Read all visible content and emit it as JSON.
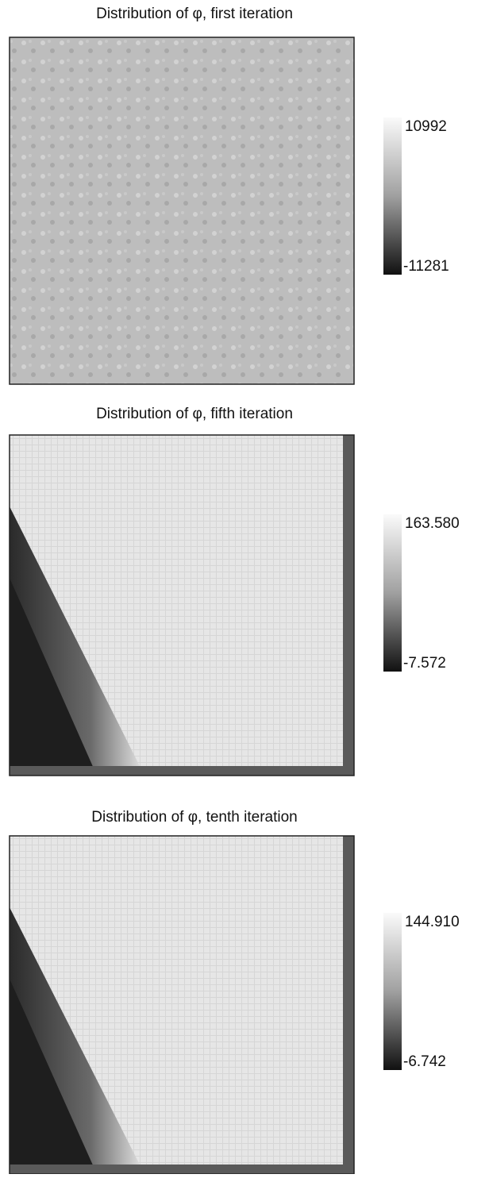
{
  "panels": [
    {
      "title": "Distribution of φ, first iteration",
      "colorbar": {
        "max": "10992",
        "min": "-11281"
      }
    },
    {
      "title": "Distribution of φ, fifth iteration",
      "colorbar": {
        "max": "163.580",
        "min": "-7.572"
      }
    },
    {
      "title": "Distribution of φ, tenth iteration",
      "colorbar": {
        "max": "144.910",
        "min": "-6.742"
      }
    }
  ]
}
